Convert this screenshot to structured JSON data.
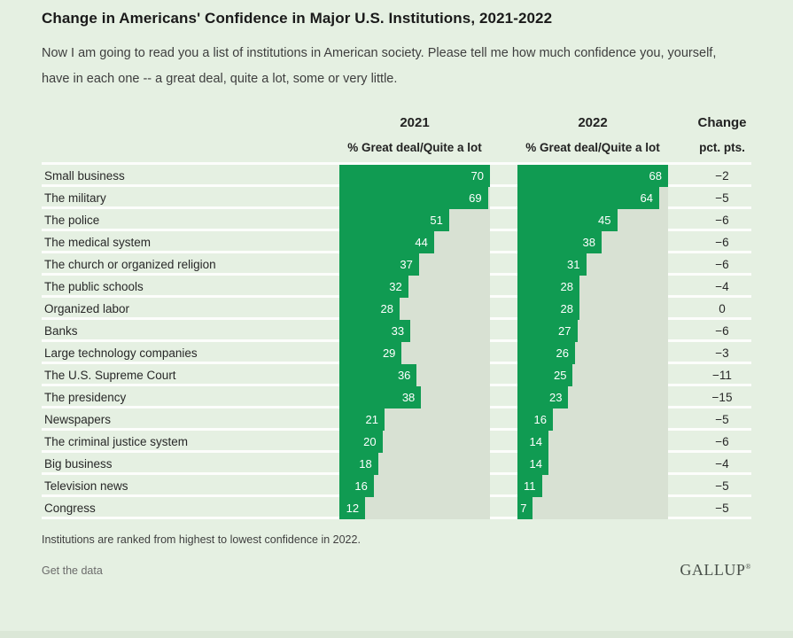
{
  "page": {
    "title": "Change in Americans' Confidence in Major U.S. Institutions, 2021-2022",
    "subtitle": "Now I am going to read you a list of institutions in American society. Please tell me how much confidence you, yourself, have in each one -- a great deal, quite a lot, some or very little.",
    "footnote": "Institutions are ranked from highest to lowest confidence in 2022.",
    "get_data_label": "Get the data",
    "logo_text": "GALLUP",
    "logo_mark": "®"
  },
  "columns": {
    "y2021": {
      "year": "2021",
      "measure": "% Great deal/Quite a lot"
    },
    "y2022": {
      "year": "2022",
      "measure": "% Great deal/Quite a lot"
    },
    "change": {
      "label": "Change",
      "unit": "pct. pts."
    }
  },
  "colors": {
    "background": "#e5f0e2",
    "bar_green": "#109b52",
    "track_gray": "#d8e1d3",
    "separator": "#fcfdfb"
  },
  "chart_data": {
    "type": "bar",
    "title": "Change in Americans' Confidence in Major U.S. Institutions, 2021-2022",
    "subtitle": "Now I am going to read you a list of institutions in American society. Please tell me how much confidence you, yourself, have in each one -- a great deal, quite a lot, some or very little.",
    "note": "Institutions are ranked from highest to lowest confidence in 2022.",
    "unit": "% Great deal/Quite a lot",
    "categories": [
      "Small business",
      "The military",
      "The police",
      "The medical system",
      "The church or organized religion",
      "The public schools",
      "Organized labor",
      "Banks",
      "Large technology companies",
      "The U.S. Supreme Court",
      "The presidency",
      "Newspapers",
      "The criminal justice system",
      "Big business",
      "Television news",
      "Congress"
    ],
    "series": [
      {
        "name": "2021 % Great deal/Quite a lot",
        "values": [
          70,
          69,
          51,
          44,
          37,
          32,
          28,
          33,
          29,
          36,
          38,
          21,
          20,
          18,
          16,
          12
        ]
      },
      {
        "name": "2022 % Great deal/Quite a lot",
        "values": [
          68,
          64,
          45,
          38,
          31,
          28,
          28,
          27,
          26,
          25,
          23,
          16,
          14,
          14,
          11,
          7
        ]
      },
      {
        "name": "Change pct. pts.",
        "values": [
          -2,
          -5,
          -6,
          -6,
          -6,
          -4,
          0,
          -6,
          -3,
          -11,
          -15,
          -5,
          -6,
          -4,
          -5,
          -5
        ]
      }
    ],
    "bar_scale_max_2021": 70,
    "bar_scale_max_2022": 68,
    "legend_position": "column headers",
    "grid": false
  },
  "rows": [
    {
      "label": "Small business",
      "v2021": 70,
      "v2022": 68,
      "change": "−2"
    },
    {
      "label": "The military",
      "v2021": 69,
      "v2022": 64,
      "change": "−5"
    },
    {
      "label": "The police",
      "v2021": 51,
      "v2022": 45,
      "change": "−6"
    },
    {
      "label": "The medical system",
      "v2021": 44,
      "v2022": 38,
      "change": "−6"
    },
    {
      "label": "The church or organized religion",
      "v2021": 37,
      "v2022": 31,
      "change": "−6"
    },
    {
      "label": "The public schools",
      "v2021": 32,
      "v2022": 28,
      "change": "−4"
    },
    {
      "label": "Organized labor",
      "v2021": 28,
      "v2022": 28,
      "change": "0"
    },
    {
      "label": "Banks",
      "v2021": 33,
      "v2022": 27,
      "change": "−6"
    },
    {
      "label": "Large technology companies",
      "v2021": 29,
      "v2022": 26,
      "change": "−3"
    },
    {
      "label": "The U.S. Supreme Court",
      "v2021": 36,
      "v2022": 25,
      "change": "−11"
    },
    {
      "label": "The presidency",
      "v2021": 38,
      "v2022": 23,
      "change": "−15"
    },
    {
      "label": "Newspapers",
      "v2021": 21,
      "v2022": 16,
      "change": "−5"
    },
    {
      "label": "The criminal justice system",
      "v2021": 20,
      "v2022": 14,
      "change": "−6"
    },
    {
      "label": "Big business",
      "v2021": 18,
      "v2022": 14,
      "change": "−4"
    },
    {
      "label": "Television news",
      "v2021": 16,
      "v2022": 11,
      "change": "−5"
    },
    {
      "label": "Congress",
      "v2021": 12,
      "v2022": 7,
      "change": "−5"
    }
  ]
}
